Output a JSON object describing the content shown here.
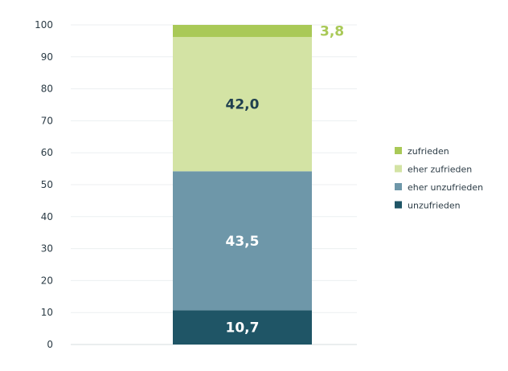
{
  "chart_data": {
    "type": "bar",
    "stacked": true,
    "categories": [
      ""
    ],
    "ylim": [
      0,
      100
    ],
    "yticks": [
      0,
      10,
      20,
      30,
      40,
      50,
      60,
      70,
      80,
      90,
      100
    ],
    "ytick_labels": [
      "0",
      "10",
      "20",
      "30",
      "40",
      "50",
      "60",
      "70",
      "80",
      "90",
      "100"
    ],
    "grid": true,
    "legend_position": "right",
    "series": [
      {
        "name": "unzufrieden",
        "values": [
          10.7
        ],
        "label": "10,7",
        "color": "#1f5566",
        "label_color": "#ffffff"
      },
      {
        "name": "eher unzufrieden",
        "values": [
          43.5
        ],
        "label": "43,5",
        "color": "#6e97a9",
        "label_color": "#ffffff"
      },
      {
        "name": "eher zufrieden",
        "values": [
          42.0
        ],
        "label": "42,0",
        "color": "#d3e3a4",
        "label_color": "#1f3f4f"
      },
      {
        "name": "zufrieden",
        "values": [
          3.8
        ],
        "label": "3,8",
        "color": "#a9c957",
        "label_color": "#a9c957"
      }
    ],
    "legend_order": [
      "zufrieden",
      "eher zufrieden",
      "eher unzufrieden",
      "unzufrieden"
    ]
  }
}
